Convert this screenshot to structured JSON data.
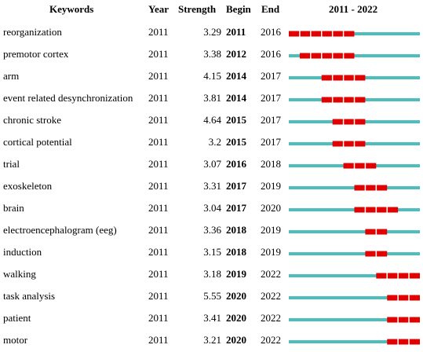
{
  "table_headers": {
    "keywords": "Keywords",
    "year": "Year",
    "strength": "Strength",
    "begin": "Begin",
    "end": "End",
    "range": "2011 - 2022"
  },
  "chart_data": {
    "type": "table",
    "timeline_start": 2011,
    "timeline_end": 2022,
    "colors": {
      "timeline": "#4dbdbd",
      "burst": "#e00000"
    },
    "rows": [
      {
        "keyword": "reorganization",
        "year": "2011",
        "strength": "3.29",
        "begin": "2011",
        "end": "2016"
      },
      {
        "keyword": "premotor cortex",
        "year": "2011",
        "strength": "3.38",
        "begin": "2012",
        "end": "2016"
      },
      {
        "keyword": "arm",
        "year": "2011",
        "strength": "4.15",
        "begin": "2014",
        "end": "2017"
      },
      {
        "keyword": "event related desynchronization",
        "year": "2011",
        "strength": "3.81",
        "begin": "2014",
        "end": "2017"
      },
      {
        "keyword": "chronic stroke",
        "year": "2011",
        "strength": "4.64",
        "begin": "2015",
        "end": "2017"
      },
      {
        "keyword": "cortical potential",
        "year": "2011",
        "strength": "3.2",
        "begin": "2015",
        "end": "2017"
      },
      {
        "keyword": "trial",
        "year": "2011",
        "strength": "3.07",
        "begin": "2016",
        "end": "2018"
      },
      {
        "keyword": "exoskeleton",
        "year": "2011",
        "strength": "3.31",
        "begin": "2017",
        "end": "2019"
      },
      {
        "keyword": "brain",
        "year": "2011",
        "strength": "3.04",
        "begin": "2017",
        "end": "2020"
      },
      {
        "keyword": "electroencephalogram (eeg)",
        "year": "2011",
        "strength": "3.36",
        "begin": "2018",
        "end": "2019"
      },
      {
        "keyword": "induction",
        "year": "2011",
        "strength": "3.15",
        "begin": "2018",
        "end": "2019"
      },
      {
        "keyword": "walking",
        "year": "2011",
        "strength": "3.18",
        "begin": "2019",
        "end": "2022"
      },
      {
        "keyword": "task analysis",
        "year": "2011",
        "strength": "5.55",
        "begin": "2020",
        "end": "2022"
      },
      {
        "keyword": "patient",
        "year": "2011",
        "strength": "3.41",
        "begin": "2020",
        "end": "2022"
      },
      {
        "keyword": "motor",
        "year": "2011",
        "strength": "3.21",
        "begin": "2020",
        "end": "2022"
      }
    ]
  }
}
